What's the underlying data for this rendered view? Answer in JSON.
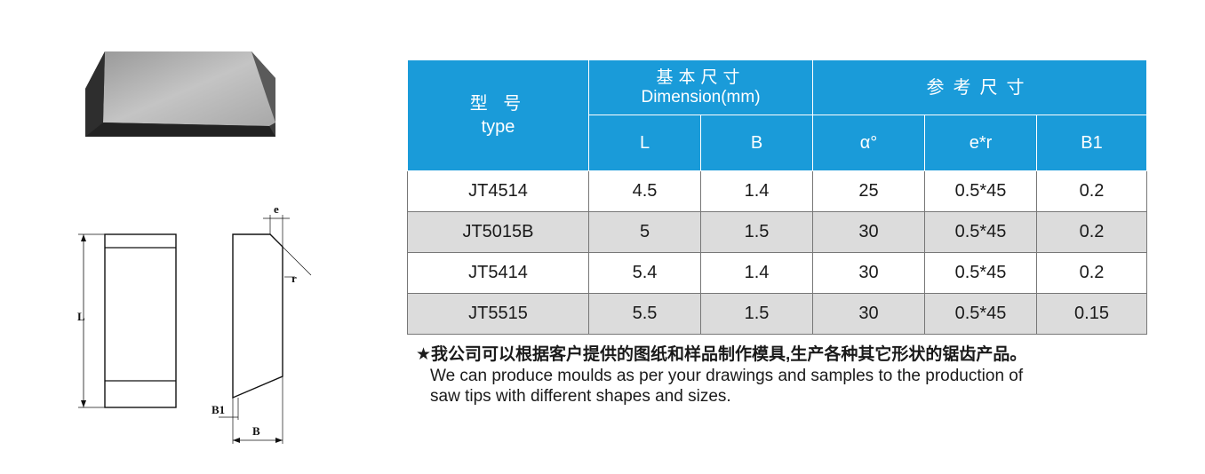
{
  "table": {
    "type_header_cn": "型  号",
    "type_header_en": "type",
    "dimension_header_cn": "基本尺寸",
    "dimension_header_en": "Dimension(mm)",
    "reference_header": "参考尺寸",
    "sub_headers": [
      "L",
      "B",
      "α°",
      "e*r",
      "B1"
    ],
    "rows": [
      {
        "type": "JT4514",
        "L": "4.5",
        "B": "1.4",
        "alpha": "25",
        "er": "0.5*45",
        "B1": "0.2"
      },
      {
        "type": "JT5015B",
        "L": "5",
        "B": "1.5",
        "alpha": "30",
        "er": "0.5*45",
        "B1": "0.2"
      },
      {
        "type": "JT5414",
        "L": "5.4",
        "B": "1.4",
        "alpha": "30",
        "er": "0.5*45",
        "B1": "0.2"
      },
      {
        "type": "JT5515",
        "L": "5.5",
        "B": "1.5",
        "alpha": "30",
        "er": "0.5*45",
        "B1": "0.15"
      }
    ]
  },
  "note": {
    "cn": "★我公司可以根据客户提供的图纸和样品制作模具,生产各种其它形状的锯齿产品。",
    "en_line1": "We can produce moulds as per your drawings and samples to the production of",
    "en_line2": "saw tips with different shapes and sizes."
  },
  "drawing_labels": {
    "length": "L",
    "e": "e",
    "r": "r",
    "b1": "B1",
    "b": "B"
  },
  "colors": {
    "header_blue": "#1a9bd9",
    "row_gray": "#dcdcdc"
  }
}
